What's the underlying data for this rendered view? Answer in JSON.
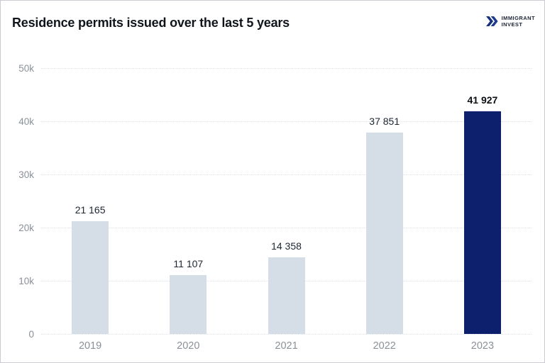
{
  "header": {
    "title": "Residence permits issued over the last 5 years"
  },
  "logo": {
    "line1": "IMMIGRANT",
    "line2": "INVEST",
    "icon": "double-chevron-right-icon",
    "color": "#1c3482"
  },
  "chart_data": {
    "type": "bar",
    "title": "Residence permits issued over the last 5 years",
    "categories": [
      "2019",
      "2020",
      "2021",
      "2022",
      "2023"
    ],
    "values": [
      21165,
      11107,
      14358,
      37851,
      41927
    ],
    "value_labels": [
      "21 165",
      "11 107",
      "14 358",
      "37 851",
      "41 927"
    ],
    "highlight_index": 4,
    "highlight_category": "2023",
    "xlabel": "",
    "ylabel": "",
    "ylim": [
      0,
      50000
    ],
    "yticks": [
      {
        "value": 0,
        "label": "0"
      },
      {
        "value": 10000,
        "label": "10k"
      },
      {
        "value": 20000,
        "label": "20k"
      },
      {
        "value": 30000,
        "label": "30k"
      },
      {
        "value": 40000,
        "label": "40k"
      },
      {
        "value": 50000,
        "label": "50k"
      }
    ],
    "grid": "horizontal-dotted",
    "legend": "none",
    "colors": {
      "bar_default": "#d5dee7",
      "bar_highlight": "#0d206e",
      "grid": "#dce1e7",
      "axis_text": "#8a9199",
      "value_text": "#1d2630",
      "title_text": "#10151c"
    }
  }
}
